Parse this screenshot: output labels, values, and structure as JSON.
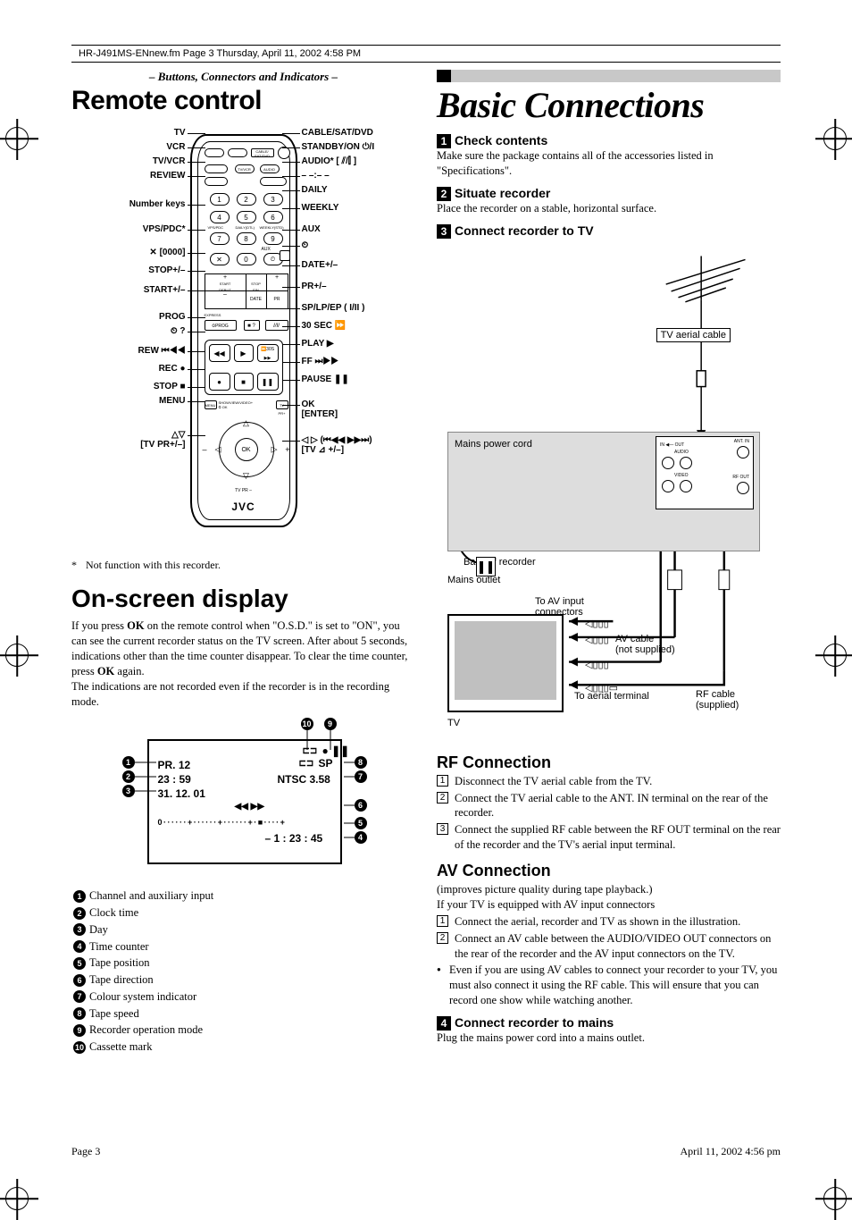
{
  "header": {
    "frame_text": "HR-J491MS-ENnew.fm  Page 3  Thursday, April 11, 2002  4:58 PM"
  },
  "left": {
    "section_label": "– Buttons, Connectors and Indicators –",
    "title1": "Remote control",
    "remote_labels_left": [
      "TV",
      "VCR",
      "TV/VCR",
      "REVIEW",
      "Number keys",
      "VPS/PDC*",
      "✕ [0000]",
      "STOP+/–",
      "START+/–",
      "PROG",
      "⏲ ?",
      "REW ⏮◀◀",
      "REC ●",
      "STOP ■",
      "MENU",
      "△▽\n[TV PR+/–]"
    ],
    "remote_labels_right": [
      "CABLE/SAT/DVD",
      "STANDBY/ON ⏻/I",
      "AUDIO* [ ⫽/⫿ ]",
      "– –:– –",
      "DAILY",
      "WEEKLY",
      "AUX",
      "⏲",
      "DATE+/–",
      "PR+/–",
      "SP/LP/EP ( I/II )",
      "30 SEC ⏩",
      "PLAY ▶",
      "FF ⏭▶▶",
      "PAUSE ❚❚",
      "OK\n[ENTER]",
      "◁ ▷ (⏮◀◀ ▶▶⏭)\n[TV ⊿ +/–]"
    ],
    "remote_brand": "JVC",
    "footnote": "Not function with this recorder.",
    "title2": "On-screen display",
    "osd_body_html": "If you press <b>OK</b> on the remote control when \"O.S.D.\" is set to \"ON\", you can see the current recorder status on the TV screen. After about 5 seconds, indications other than the time counter disappear. To clear the time counter, press <b>OK</b> again.<br>The indications are not recorded even if the recorder is in the recording mode.",
    "osd_screen": {
      "pr": "PR.  12",
      "time": "23 : 59",
      "date": "31. 12. 01",
      "sp": "SP",
      "ntsc": "NTSC 3.58",
      "transport": "◀◀ ▶▶",
      "scale": "0 · · · · · · + · · · · · · + · · · · · · + · ■ · · · · +",
      "counter": "– 1 : 23 : 45",
      "top_icons": "●  ❚❚",
      "cassette": "⊏⊐"
    },
    "osd_legend": [
      "Channel and auxiliary input",
      "Clock time",
      "Day",
      "Time counter",
      "Tape position",
      "Tape direction",
      "Colour system indicator",
      "Tape speed",
      "Recorder operation mode",
      "Cassette mark"
    ]
  },
  "right": {
    "title": "Basic Connections",
    "step1_h": "Check contents",
    "step1_p": "Make sure the package contains all of the accessories listed in \"Specifications\".",
    "step2_h": "Situate recorder",
    "step2_p": "Place the recorder on a stable, horizontal surface.",
    "step3_h": "Connect recorder to TV",
    "diagram_labels": {
      "aerial_cable": "TV aerial cable",
      "mains_cord": "Mains power cord",
      "back_rec": "Back of recorder",
      "mains_outlet": "Mains outlet",
      "to_av": "To AV input\nconnectors",
      "av_cable": "AV cable\n(not supplied)",
      "to_aerial": "To aerial terminal",
      "rf_cable": "RF cable\n(supplied)",
      "tv": "TV",
      "ant_in": "ANT. IN",
      "rf_out": "RF OUT",
      "audio": "AUDIO",
      "video": "VIDEO",
      "in_out": "IN ◀— OUT"
    },
    "rf_title": "RF Connection",
    "rf_steps": [
      "Disconnect the TV aerial cable from the TV.",
      "Connect the TV aerial cable to the ANT. IN terminal on the rear of the recorder.",
      "Connect the supplied RF cable between the RF OUT terminal on the rear of the recorder and the TV's aerial input terminal."
    ],
    "av_title": "AV Connection",
    "av_intro1": "(improves picture quality during tape playback.)",
    "av_intro2": "If your TV is equipped with AV input connectors",
    "av_steps": [
      "Connect the aerial, recorder and TV as shown in the illustration.",
      "Connect an AV cable between the AUDIO/VIDEO OUT connectors on the rear of the recorder and the AV input connectors on the TV."
    ],
    "av_note": "Even if you are using AV cables to connect your recorder to your TV, you must also connect it using the RF cable. This will ensure that you can record one show while watching another.",
    "step4_h": "Connect recorder to mains",
    "step4_p": "Plug the mains power cord into a mains outlet."
  },
  "footer": {
    "page": "Page 3",
    "date": "April 11, 2002  4:56 pm"
  },
  "colors": {
    "gray_panel": "#dddddd",
    "gray_screen": "#c0c0c0",
    "title_bar": "#c8c8c8"
  }
}
